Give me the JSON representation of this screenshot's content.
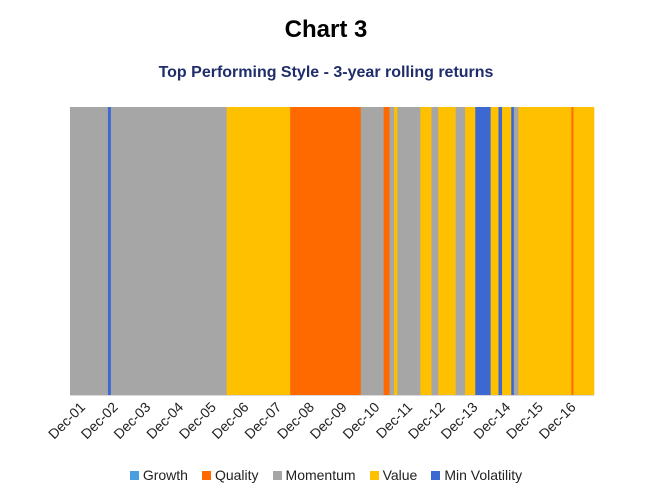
{
  "title": "Chart 3",
  "subtitle": "Top Performing Style - 3-year rolling returns",
  "chart_data": {
    "type": "bar",
    "title": "Chart 3",
    "subtitle": "Top Performing Style - 3-year rolling returns",
    "x_range": [
      2001.92,
      2017.94
    ],
    "x_ticks": [
      "Dec-01",
      "Dec-02",
      "Dec-03",
      "Dec-04",
      "Dec-05",
      "Dec-06",
      "Dec-07",
      "Dec-08",
      "Dec-09",
      "Dec-10",
      "Dec-11",
      "Dec-12",
      "Dec-13",
      "Dec-14",
      "Dec-15",
      "Dec-16"
    ],
    "series": [
      {
        "name": "Growth",
        "color": "#4a9fe0"
      },
      {
        "name": "Quality",
        "color": "#ff6a00"
      },
      {
        "name": "Momentum",
        "color": "#a6a6a6"
      },
      {
        "name": "Value",
        "color": "#ffc000"
      },
      {
        "name": "Min Volatility",
        "color": "#3b68d1"
      }
    ],
    "segments": [
      {
        "start": 2001.92,
        "end": 2003.08,
        "style": "Momentum"
      },
      {
        "start": 2003.08,
        "end": 2003.17,
        "style": "Min Volatility"
      },
      {
        "start": 2003.17,
        "end": 2006.71,
        "style": "Momentum"
      },
      {
        "start": 2006.71,
        "end": 2008.65,
        "style": "Value"
      },
      {
        "start": 2008.65,
        "end": 2010.81,
        "style": "Quality"
      },
      {
        "start": 2010.81,
        "end": 2011.51,
        "style": "Momentum"
      },
      {
        "start": 2011.51,
        "end": 2011.69,
        "style": "Quality"
      },
      {
        "start": 2011.69,
        "end": 2011.83,
        "style": "Momentum"
      },
      {
        "start": 2011.83,
        "end": 2011.93,
        "style": "Value"
      },
      {
        "start": 2011.93,
        "end": 2012.63,
        "style": "Momentum"
      },
      {
        "start": 2012.63,
        "end": 2012.97,
        "style": "Value"
      },
      {
        "start": 2012.97,
        "end": 2013.18,
        "style": "Momentum"
      },
      {
        "start": 2013.18,
        "end": 2013.71,
        "style": "Value"
      },
      {
        "start": 2013.71,
        "end": 2014.0,
        "style": "Momentum"
      },
      {
        "start": 2014.0,
        "end": 2014.31,
        "style": "Value"
      },
      {
        "start": 2014.31,
        "end": 2014.78,
        "style": "Min Volatility"
      },
      {
        "start": 2014.78,
        "end": 2015.02,
        "style": "Value"
      },
      {
        "start": 2015.02,
        "end": 2015.13,
        "style": "Min Volatility"
      },
      {
        "start": 2015.13,
        "end": 2015.41,
        "style": "Value"
      },
      {
        "start": 2015.41,
        "end": 2015.49,
        "style": "Min Volatility"
      },
      {
        "start": 2015.49,
        "end": 2015.63,
        "style": "Momentum"
      },
      {
        "start": 2015.63,
        "end": 2017.25,
        "style": "Value"
      },
      {
        "start": 2017.25,
        "end": 2017.31,
        "style": "Quality"
      },
      {
        "start": 2017.31,
        "end": 2017.94,
        "style": "Value"
      }
    ],
    "grid": false,
    "legend": "bottom"
  }
}
